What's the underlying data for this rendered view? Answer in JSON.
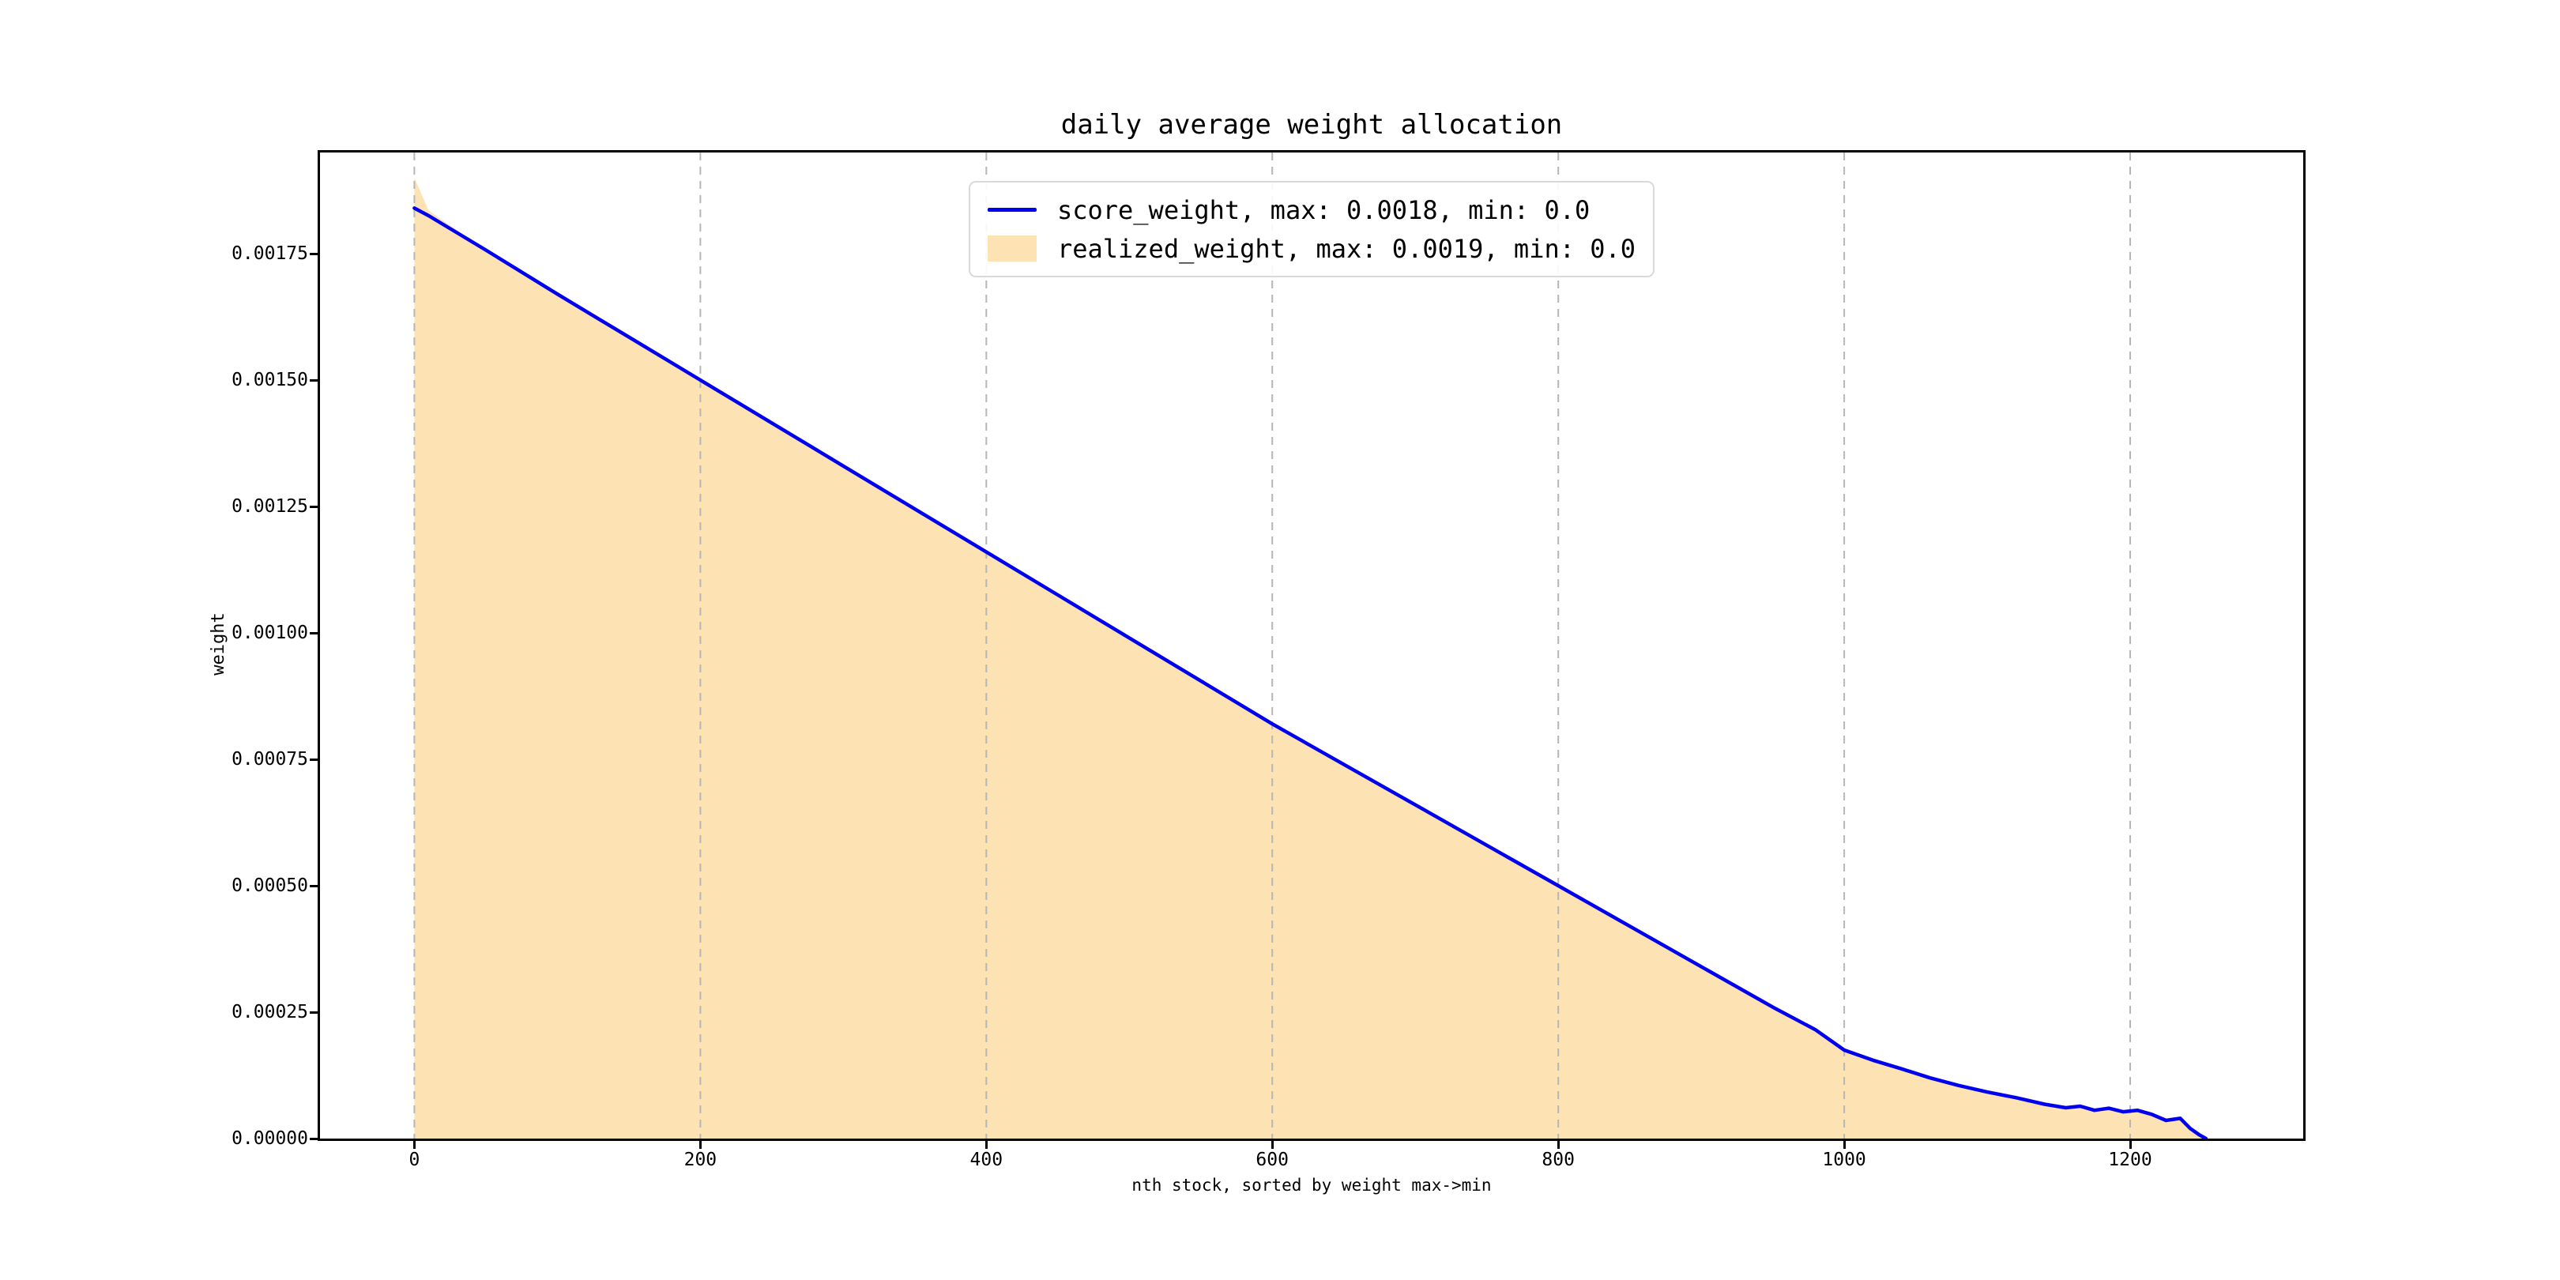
{
  "figure": {
    "title": "daily average weight allocation",
    "background": "#ffffff"
  },
  "chart_data": {
    "type": "area",
    "title": "daily average weight allocation",
    "xlabel": "nth stock, sorted by weight max->min",
    "ylabel": "weight",
    "xlim": [
      -66,
      1321
    ],
    "ylim": [
      0,
      0.00195
    ],
    "xticks": [
      0,
      200,
      400,
      600,
      800,
      1000,
      1200
    ],
    "yticks": [
      0.0,
      0.00025,
      0.0005,
      0.00075,
      0.001,
      0.00125,
      0.0015,
      0.00175
    ],
    "ytick_labels": [
      "0.00000",
      "0.00025",
      "0.00050",
      "0.00075",
      "0.00100",
      "0.00125",
      "0.00150",
      "0.00175"
    ],
    "grid": {
      "axis": "x",
      "style": "dashed",
      "color": "#b6b6b6"
    },
    "legend_position": "upper center",
    "spine_color": "#000000",
    "x": [
      0,
      10,
      50,
      100,
      150,
      200,
      250,
      300,
      350,
      400,
      450,
      500,
      550,
      600,
      650,
      700,
      750,
      800,
      850,
      900,
      950,
      980,
      1000,
      1020,
      1040,
      1060,
      1080,
      1100,
      1120,
      1140,
      1155,
      1165,
      1175,
      1185,
      1195,
      1205,
      1215,
      1225,
      1235,
      1242,
      1248,
      1253
    ],
    "series": [
      {
        "name": "score_weight",
        "legend_label": "score_weight, max: 0.0018, min: 0.0",
        "style": "line",
        "color": "#0000ee",
        "max": 0.0018,
        "min": 0.0,
        "y": [
          0.00184,
          0.001825,
          0.001757,
          0.00167,
          0.001585,
          0.0015,
          0.001415,
          0.00133,
          0.001245,
          0.00116,
          0.001075,
          0.00099,
          0.000905,
          0.00082,
          0.00074,
          0.00066,
          0.00058,
          0.0005,
          0.00042,
          0.00034,
          0.00026,
          0.000215,
          0.000175,
          0.000155,
          0.000138,
          0.00012,
          0.000105,
          9.2e-05,
          8.1e-05,
          6.8e-05,
          6.1e-05,
          6.4e-05,
          5.6e-05,
          6e-05,
          5.3e-05,
          5.6e-05,
          4.8e-05,
          3.6e-05,
          4e-05,
          2e-05,
          8e-06,
          0.0
        ]
      },
      {
        "name": "realized_weight",
        "legend_label": "realized_weight, max: 0.0019, min: 0.0",
        "style": "area",
        "color": "#fde2b3",
        "max": 0.0019,
        "min": 0.0,
        "y": [
          0.0019,
          0.001835,
          0.001757,
          0.00167,
          0.001585,
          0.0015,
          0.001415,
          0.00133,
          0.001245,
          0.00116,
          0.001075,
          0.00099,
          0.000905,
          0.00082,
          0.00074,
          0.00066,
          0.00058,
          0.0005,
          0.00042,
          0.00034,
          0.00026,
          0.000215,
          0.000175,
          0.000155,
          0.000138,
          0.00012,
          0.000105,
          9.2e-05,
          8.1e-05,
          6.8e-05,
          6.1e-05,
          6.4e-05,
          5.6e-05,
          6e-05,
          5.3e-05,
          5.6e-05,
          4.8e-05,
          3.6e-05,
          4e-05,
          2e-05,
          8e-06,
          0.0
        ]
      }
    ]
  }
}
